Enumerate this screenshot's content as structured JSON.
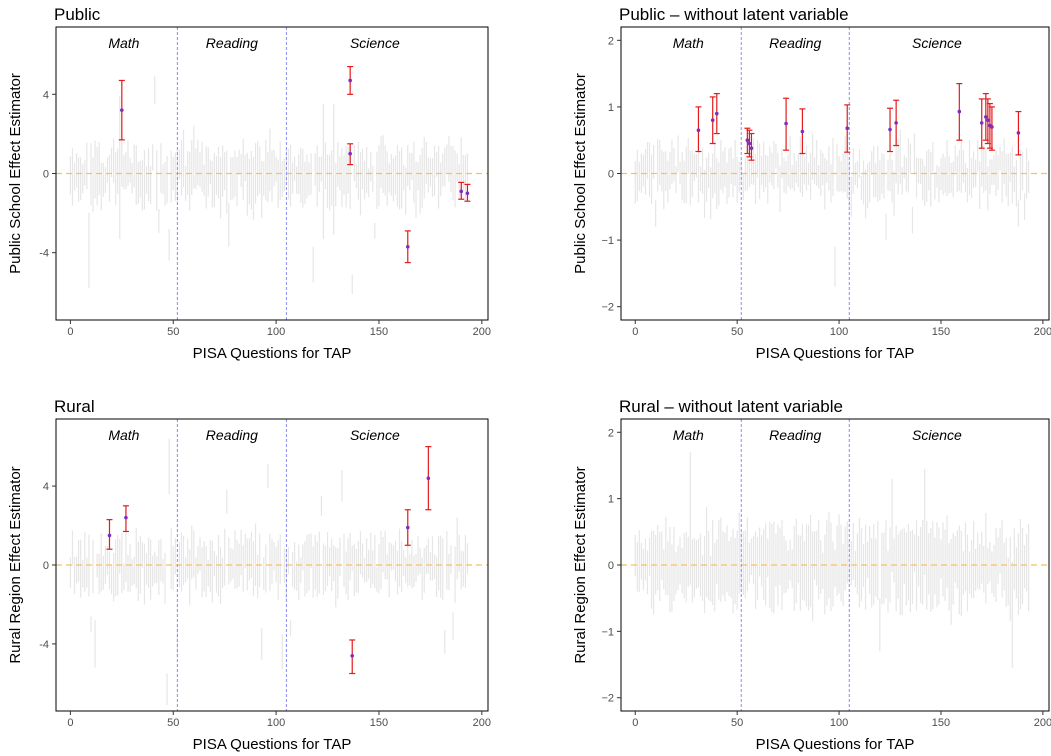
{
  "colors": {
    "background_bar": "#e6e6e6",
    "highlight_bar": "#e41a1c",
    "highlight_point": "#7b2fbe",
    "zero_line": "#f5c163",
    "section_line": "#8c8cf0",
    "frame": "#000000"
  },
  "chart_data": [
    {
      "type": "errorbar",
      "title": "Public",
      "xlabel": "PISA Questions for TAP",
      "ylabel": "Public School Effect Estimator",
      "xlim": [
        -7,
        203
      ],
      "ylim": [
        -7.4,
        7.4
      ],
      "xticks": [
        0,
        50,
        100,
        150,
        200
      ],
      "xtick_labels": [
        "0",
        "50",
        "100",
        "150",
        "200"
      ],
      "yticks": [
        -4,
        0,
        4
      ],
      "ytick_labels": [
        "-4",
        "0",
        "4"
      ],
      "reference_line_y": 0,
      "section_boundaries": [
        52,
        105
      ],
      "sections": [
        {
          "label": "Math",
          "x": 26
        },
        {
          "label": "Reading",
          "x": 78.5
        },
        {
          "label": "Science",
          "x": 148
        }
      ],
      "background_intervals": {
        "n": 194,
        "seed": 11,
        "halfwidth": 1.1,
        "spread": 0.35,
        "outliers": [
          [
            9,
            -3.9,
            1.9
          ],
          [
            43,
            -2.4,
            0.6
          ],
          [
            48,
            -3.6,
            0.8
          ],
          [
            77,
            -2.6,
            1.1
          ],
          [
            118,
            -4.6,
            0.9
          ],
          [
            148,
            -2.9,
            0.4
          ],
          [
            41,
            4.2,
            0.7
          ],
          [
            24,
            0.3,
            3.6
          ],
          [
            128,
            0.2,
            3.3
          ],
          [
            123,
            0.1,
            3.4
          ],
          [
            137,
            -5.6,
            0.5
          ]
        ]
      },
      "highlighted": [
        {
          "x": 25,
          "y": 3.2,
          "lo": 1.7,
          "hi": 4.7
        },
        {
          "x": 136,
          "y": 4.7,
          "lo": 4.0,
          "hi": 5.4
        },
        {
          "x": 136,
          "y": 1.0,
          "lo": 0.45,
          "hi": 1.5
        },
        {
          "x": 164,
          "y": -3.7,
          "lo": -4.5,
          "hi": -2.9
        },
        {
          "x": 190,
          "y": -0.9,
          "lo": -1.3,
          "hi": -0.45
        },
        {
          "x": 193,
          "y": -1.0,
          "lo": -1.4,
          "hi": -0.55
        }
      ]
    },
    {
      "type": "errorbar",
      "title": "Public – without latent variable",
      "xlabel": "PISA Questions for TAP",
      "ylabel": "Public School Effect Estimator",
      "xlim": [
        -7,
        203
      ],
      "ylim": [
        -2.2,
        2.2
      ],
      "xticks": [
        0,
        50,
        100,
        150,
        200
      ],
      "xtick_labels": [
        "0",
        "50",
        "100",
        "150",
        "200"
      ],
      "yticks": [
        -2,
        -1,
        0,
        1,
        2
      ],
      "ytick_labels": [
        "−2",
        "−1",
        "0",
        "1",
        "2"
      ],
      "reference_line_y": 0,
      "section_boundaries": [
        52,
        105
      ],
      "sections": [
        {
          "label": "Math",
          "x": 26
        },
        {
          "label": "Reading",
          "x": 78.5
        },
        {
          "label": "Science",
          "x": 148
        }
      ],
      "background_intervals": {
        "n": 194,
        "seed": 23,
        "halfwidth": 0.3,
        "spread": 0.12,
        "outliers": [
          [
            10,
            -0.6,
            0.2
          ],
          [
            98,
            -1.4,
            0.3
          ],
          [
            123,
            -0.8,
            0.2
          ],
          [
            136,
            -0.7,
            0.2
          ],
          [
            188,
            -0.6,
            0.2
          ],
          [
            191,
            -0.5,
            0.2
          ],
          [
            106,
            -0.35,
            0.3
          ]
        ]
      },
      "highlighted": [
        {
          "x": 31,
          "y": 0.65,
          "lo": 0.33,
          "hi": 1.0
        },
        {
          "x": 38,
          "y": 0.8,
          "lo": 0.45,
          "hi": 1.15
        },
        {
          "x": 40,
          "y": 0.9,
          "lo": 0.6,
          "hi": 1.2
        },
        {
          "x": 55,
          "y": 0.5,
          "lo": 0.3,
          "hi": 0.68
        },
        {
          "x": 56,
          "y": 0.45,
          "lo": 0.25,
          "hi": 0.65
        },
        {
          "x": 57,
          "y": 0.38,
          "lo": 0.2,
          "hi": 0.6
        },
        {
          "x": 74,
          "y": 0.75,
          "lo": 0.35,
          "hi": 1.13
        },
        {
          "x": 82,
          "y": 0.63,
          "lo": 0.3,
          "hi": 0.97
        },
        {
          "x": 104,
          "y": 0.68,
          "lo": 0.32,
          "hi": 1.03
        },
        {
          "x": 125,
          "y": 0.66,
          "lo": 0.33,
          "hi": 0.98
        },
        {
          "x": 128,
          "y": 0.76,
          "lo": 0.42,
          "hi": 1.1
        },
        {
          "x": 159,
          "y": 0.93,
          "lo": 0.5,
          "hi": 1.35
        },
        {
          "x": 170,
          "y": 0.76,
          "lo": 0.38,
          "hi": 1.12
        },
        {
          "x": 172,
          "y": 0.85,
          "lo": 0.5,
          "hi": 1.2
        },
        {
          "x": 173,
          "y": 0.8,
          "lo": 0.45,
          "hi": 1.12
        },
        {
          "x": 174,
          "y": 0.72,
          "lo": 0.38,
          "hi": 1.05
        },
        {
          "x": 175,
          "y": 0.7,
          "lo": 0.35,
          "hi": 1.0
        },
        {
          "x": 188,
          "y": 0.61,
          "lo": 0.28,
          "hi": 0.93
        }
      ]
    },
    {
      "type": "errorbar",
      "title": "Rural",
      "xlabel": "PISA Questions for TAP",
      "ylabel": "Rural Region Effect Estimator",
      "xlim": [
        -7,
        203
      ],
      "ylim": [
        -7.4,
        7.4
      ],
      "xticks": [
        0,
        50,
        100,
        150,
        200
      ],
      "xtick_labels": [
        "0",
        "50",
        "100",
        "150",
        "200"
      ],
      "yticks": [
        -4,
        0,
        4
      ],
      "ytick_labels": [
        "-4",
        "0",
        "4"
      ],
      "reference_line_y": 0,
      "section_boundaries": [
        52,
        105
      ],
      "sections": [
        {
          "label": "Math",
          "x": 26
        },
        {
          "label": "Reading",
          "x": 78.5
        },
        {
          "label": "Science",
          "x": 148
        }
      ],
      "background_intervals": {
        "n": 194,
        "seed": 37,
        "halfwidth": 1.1,
        "spread": 0.35,
        "outliers": [
          [
            47,
            -6.3,
            0.8
          ],
          [
            48,
            5.0,
            1.4
          ],
          [
            52,
            -3.9,
            0.8
          ],
          [
            12,
            -4.0,
            1.2
          ],
          [
            93,
            -4.0,
            0.8
          ],
          [
            103,
            -4.4,
            0.9
          ],
          [
            132,
            4.0,
            0.8
          ],
          [
            182,
            -3.9,
            0.6
          ],
          [
            10,
            -3.0,
            0.4
          ],
          [
            96,
            4.5,
            0.6
          ],
          [
            76,
            3.2,
            0.6
          ],
          [
            107,
            -3.2,
            0.4
          ],
          [
            122,
            3.0,
            0.5
          ],
          [
            186,
            -3.1,
            0.7
          ]
        ]
      },
      "highlighted": [
        {
          "x": 19,
          "y": 1.5,
          "lo": 0.8,
          "hi": 2.3
        },
        {
          "x": 27,
          "y": 2.4,
          "lo": 1.7,
          "hi": 3.0
        },
        {
          "x": 137,
          "y": -4.6,
          "lo": -5.5,
          "hi": -3.8
        },
        {
          "x": 164,
          "y": 1.9,
          "lo": 1.0,
          "hi": 2.8
        },
        {
          "x": 174,
          "y": 4.4,
          "lo": 2.8,
          "hi": 6.0
        }
      ]
    },
    {
      "type": "errorbar",
      "title": "Rural – without latent variable",
      "xlabel": "PISA Questions for TAP",
      "ylabel": "Rural Region Effect Estimator",
      "xlim": [
        -7,
        203
      ],
      "ylim": [
        -2.2,
        2.2
      ],
      "xticks": [
        0,
        50,
        100,
        150,
        200
      ],
      "xtick_labels": [
        "0",
        "50",
        "100",
        "150",
        "200"
      ],
      "yticks": [
        -2,
        -1,
        0,
        1,
        2
      ],
      "ytick_labels": [
        "−2",
        "−1",
        "0",
        "1",
        "2"
      ],
      "reference_line_y": 0,
      "section_boundaries": [
        52,
        105
      ],
      "sections": [
        {
          "label": "Math",
          "x": 26
        },
        {
          "label": "Reading",
          "x": 78.5
        },
        {
          "label": "Science",
          "x": 148
        }
      ],
      "background_intervals": {
        "n": 194,
        "seed": 53,
        "halfwidth": 0.48,
        "spread": 0.1,
        "outliers": [
          [
            27,
            0.7,
            1.0
          ],
          [
            126,
            0.6,
            0.7
          ],
          [
            142,
            0.65,
            0.8
          ],
          [
            185,
            -0.75,
            0.8
          ],
          [
            120,
            -0.9,
            0.4
          ]
        ]
      },
      "highlighted": []
    }
  ]
}
